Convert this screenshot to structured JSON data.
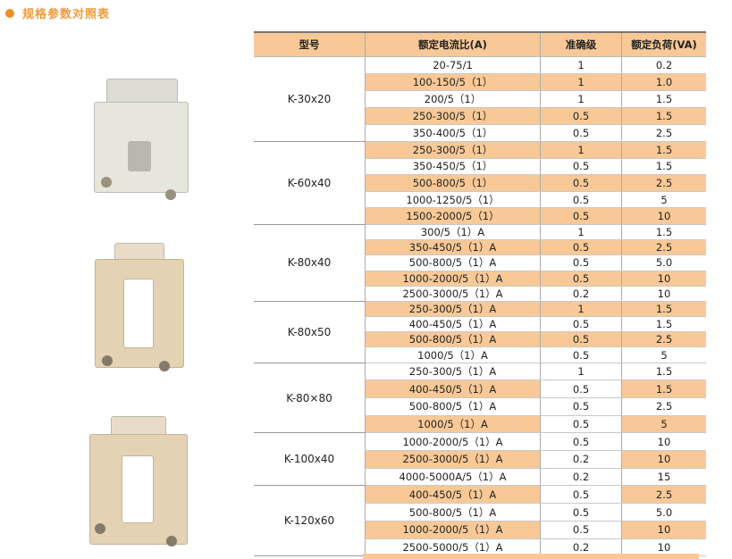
{
  "section_title": "规格参数对照表",
  "colors": {
    "accent": "#ef8f24",
    "row_shade": "#f8c997"
  },
  "table": {
    "headers": [
      "型号",
      "额定电流比(A)",
      "准确级",
      "额定负荷(VA)"
    ],
    "groups": [
      {
        "model": "K-30x20",
        "rows": [
          {
            "ratio": "20-75/1",
            "accuracy": "1",
            "burden": "0.2",
            "shaded": false
          },
          {
            "ratio": "100-150/5（1）",
            "accuracy": "1",
            "burden": "1.0",
            "shaded": true
          },
          {
            "ratio": "200/5（1）",
            "accuracy": "1",
            "burden": "1.5",
            "shaded": false
          },
          {
            "ratio": "250-300/5（1）",
            "accuracy": "0.5",
            "burden": "1.5",
            "shaded": true
          },
          {
            "ratio": "350-400/5（1）",
            "accuracy": "0.5",
            "burden": "2.5",
            "shaded": false
          }
        ]
      },
      {
        "model": "K-60x40",
        "rows": [
          {
            "ratio": "250-300/5（1）",
            "accuracy": "1",
            "burden": "1.5",
            "shaded": true
          },
          {
            "ratio": "350-450/5（1）",
            "accuracy": "0.5",
            "burden": "1.5",
            "shaded": false
          },
          {
            "ratio": "500-800/5（1）",
            "accuracy": "0.5",
            "burden": "2.5",
            "shaded": true
          },
          {
            "ratio": "1000-1250/5（1）",
            "accuracy": "0.5",
            "burden": "5",
            "shaded": false
          },
          {
            "ratio": "1500-2000/5（1）",
            "accuracy": "0.5",
            "burden": "10",
            "shaded": true
          }
        ]
      },
      {
        "model": "K-80x40",
        "rows": [
          {
            "ratio": "300/5（1）A",
            "accuracy": "1",
            "burden": "1.5",
            "shaded": false
          },
          {
            "ratio": "350-450/5（1）A",
            "accuracy": "0.5",
            "burden": "2.5",
            "shaded": true
          },
          {
            "ratio": "500-800/5（1）A",
            "accuracy": "0.5",
            "burden": "5.0",
            "shaded": false
          },
          {
            "ratio": "1000-2000/5（1）A",
            "accuracy": "0.5",
            "burden": "10",
            "shaded": true
          },
          {
            "ratio": "2500-3000/5（1）A",
            "accuracy": "0.2",
            "burden": "10",
            "shaded": false
          }
        ]
      },
      {
        "model": "K-80x50",
        "rows": [
          {
            "ratio": "250-300/5（1）A",
            "accuracy": "1",
            "burden": "1.5",
            "shaded": true
          },
          {
            "ratio": "400-450/5（1）A",
            "accuracy": "0.5",
            "burden": "1.5",
            "shaded": false
          },
          {
            "ratio": "500-800/5（1）A",
            "accuracy": "0.5",
            "burden": "2.5",
            "shaded": true
          },
          {
            "ratio": "1000/5（1）A",
            "accuracy": "0.5",
            "burden": "5",
            "shaded": false
          }
        ]
      },
      {
        "model": "K-80×80",
        "rows": [
          {
            "ratio": "250-300/5（1）A",
            "accuracy": "1",
            "burden": "1.5",
            "shaded": false
          },
          {
            "ratio": "400-450/5（1）A",
            "accuracy": "0.5",
            "burden": "1.5",
            "shaded": true
          },
          {
            "ratio": "500-800/5（1）A",
            "accuracy": "0.5",
            "burden": "2.5",
            "shaded": false
          },
          {
            "ratio": "1000/5（1）A",
            "accuracy": "0.5",
            "burden": "5",
            "shaded": true
          }
        ]
      },
      {
        "model": "K-100x40",
        "rows": [
          {
            "ratio": "1000-2000/5（1）A",
            "accuracy": "0.5",
            "burden": "10",
            "shaded": false
          },
          {
            "ratio": "2500-3000/5（1）A",
            "accuracy": "0.2",
            "burden": "10",
            "shaded": true
          },
          {
            "ratio": "4000-5000A/5（1）A",
            "accuracy": "0.2",
            "burden": "15",
            "shaded": false
          }
        ]
      },
      {
        "model": "K-120x60",
        "rows": [
          {
            "ratio": "400-450/5（1）A",
            "accuracy": "0.5",
            "burden": "2.5",
            "shaded": true
          },
          {
            "ratio": "500-800/5（1）A",
            "accuracy": "0.5",
            "burden": "5.0",
            "shaded": false
          },
          {
            "ratio": "1000-2000/5（1）A",
            "accuracy": "0.5",
            "burden": "10",
            "shaded": true
          },
          {
            "ratio": "2500-5000/5（1）A",
            "accuracy": "0.2",
            "burden": "10",
            "shaded": false
          }
        ]
      }
    ]
  }
}
